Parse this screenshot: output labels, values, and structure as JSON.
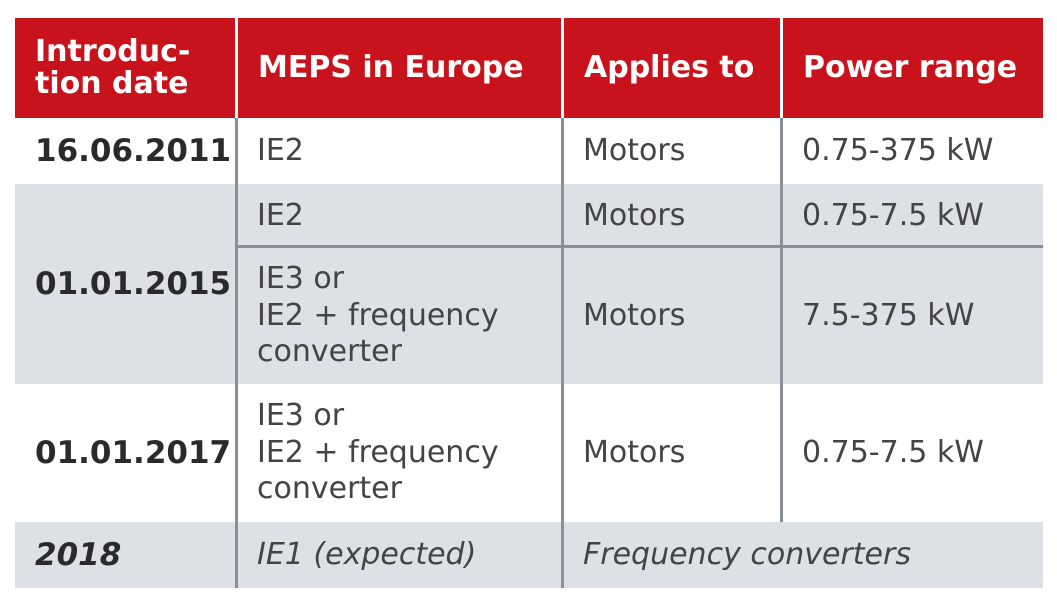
{
  "table": {
    "headers": [
      "Introduc-\ntion date",
      "MEPS in Europe",
      "Applies to",
      "Power range"
    ],
    "rows": [
      {
        "date": "16.06.2011",
        "meps": "IE2",
        "applies": "Motors",
        "power": "0.75-375 kW"
      },
      {
        "date": "01.01.2015",
        "sub": [
          {
            "meps": "IE2",
            "applies": "Motors",
            "power": "0.75-7.5 kW"
          },
          {
            "meps": [
              "IE3 or",
              "IE2 + frequency",
              "converter"
            ],
            "applies": "Motors",
            "power": "7.5-375 kW"
          }
        ]
      },
      {
        "date": "01.01.2017",
        "meps": [
          "IE3 or",
          "IE2 + frequency",
          "converter"
        ],
        "applies": "Motors",
        "power": "0.75-7.5 kW"
      },
      {
        "date": "2018",
        "meps": "IE1 (expected)",
        "applies": "Frequency converters"
      }
    ]
  },
  "colors": {
    "header_bg": "#c8131c",
    "row_shade": "#dde1e6",
    "rule": "#8a9097"
  }
}
